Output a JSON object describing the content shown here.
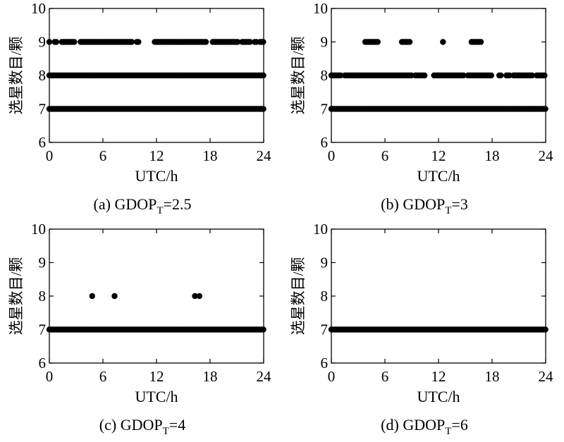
{
  "chart_data": [
    {
      "type": "scatter",
      "panel": "a",
      "caption_prefix": "(a) GDOP",
      "caption_sub": "T",
      "caption_suffix": "=2.5",
      "xlabel": "UTC/h",
      "ylabel": "选星数目/颗",
      "xlim": [
        0,
        24
      ],
      "ylim": [
        6,
        10
      ],
      "xticks": [
        0,
        6,
        12,
        18,
        24
      ],
      "yticks": [
        6,
        7,
        8,
        9,
        10
      ],
      "series": [
        {
          "y": 7,
          "segments": [
            [
              0,
              24
            ]
          ]
        },
        {
          "y": 8,
          "segments": [
            [
              0,
              24
            ]
          ]
        },
        {
          "y": 9,
          "segments": [
            [
              0,
              0.1
            ],
            [
              0.6,
              0.9
            ],
            [
              1.4,
              2.9
            ],
            [
              3.5,
              9.4
            ],
            [
              9.8,
              10.0
            ],
            [
              11.8,
              17.7
            ],
            [
              18.3,
              21.2
            ],
            [
              21.6,
              22.5
            ],
            [
              23.0,
              23.2
            ],
            [
              23.6,
              24
            ]
          ]
        }
      ]
    },
    {
      "type": "scatter",
      "panel": "b",
      "caption_prefix": "(b) GDOP",
      "caption_sub": "T",
      "caption_suffix": "=3",
      "xlabel": "UTC/h",
      "ylabel": "选星数目/颗",
      "xlim": [
        0,
        24
      ],
      "ylim": [
        6,
        10
      ],
      "xticks": [
        0,
        6,
        12,
        18,
        24
      ],
      "yticks": [
        6,
        7,
        8,
        9,
        10
      ],
      "series": [
        {
          "y": 7,
          "segments": [
            [
              0,
              24
            ]
          ]
        },
        {
          "y": 8,
          "segments": [
            [
              0,
              1.2
            ],
            [
              1.5,
              9.1
            ],
            [
              9.4,
              10.5
            ],
            [
              11.5,
              14.8
            ],
            [
              15.3,
              18.0
            ],
            [
              18.8,
              19.1
            ],
            [
              19.6,
              20.0
            ],
            [
              20.4,
              22.5
            ],
            [
              23.0,
              24
            ]
          ]
        },
        {
          "y": 9,
          "segments": [
            [
              3.8,
              5.3
            ],
            [
              7.9,
              8.8
            ],
            [
              12.5,
              12.5
            ],
            [
              15.7,
              16.8
            ]
          ]
        }
      ]
    },
    {
      "type": "scatter",
      "panel": "c",
      "caption_prefix": "(c) GDOP",
      "caption_sub": "T",
      "caption_suffix": "=4",
      "xlabel": "UTC/h",
      "ylabel": "选星数目/颗",
      "xlim": [
        0,
        24
      ],
      "ylim": [
        6,
        10
      ],
      "xticks": [
        0,
        6,
        12,
        18,
        24
      ],
      "yticks": [
        6,
        7,
        8,
        9,
        10
      ],
      "series": [
        {
          "y": 7,
          "segments": [
            [
              0,
              24
            ]
          ]
        },
        {
          "y": 8,
          "segments": [
            [
              4.8,
              4.8
            ],
            [
              7.3,
              7.3
            ],
            [
              16.3,
              16.3
            ],
            [
              16.8,
              16.8
            ]
          ]
        }
      ]
    },
    {
      "type": "scatter",
      "panel": "d",
      "caption_prefix": "(d) GDOP",
      "caption_sub": "T",
      "caption_suffix": "=6",
      "xlabel": "UTC/h",
      "ylabel": "选星数目/颗",
      "xlim": [
        0,
        24
      ],
      "ylim": [
        6,
        10
      ],
      "xticks": [
        0,
        6,
        12,
        18,
        24
      ],
      "yticks": [
        6,
        7,
        8,
        9,
        10
      ],
      "series": [
        {
          "y": 7,
          "segments": [
            [
              0,
              24
            ]
          ]
        }
      ]
    }
  ]
}
